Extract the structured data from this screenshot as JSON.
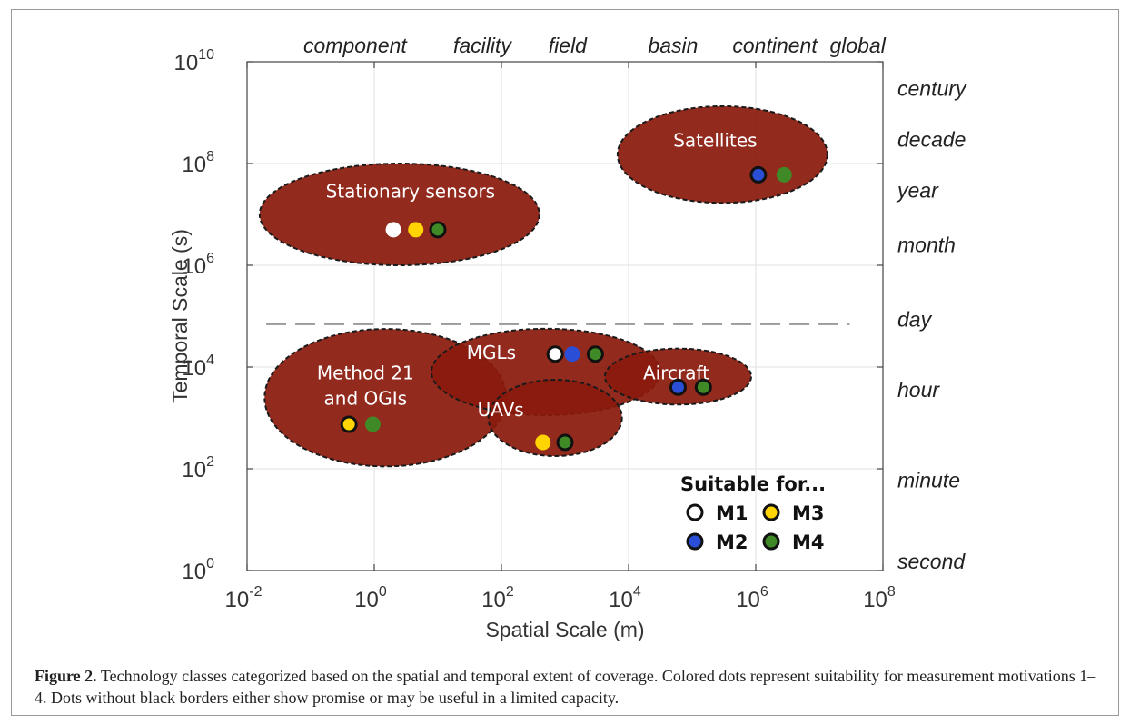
{
  "chart_data": {
    "type": "scatter",
    "xlabel": "Spatial Scale (m)",
    "ylabel": "Temporal Scale (s)",
    "x_scale": "log",
    "y_scale": "log",
    "xlim": [
      0.01,
      100000000
    ],
    "ylim": [
      1,
      10000000000
    ],
    "grid": true,
    "x_ticks": [
      {
        "base": "10",
        "exp": "-2",
        "value": 0.01
      },
      {
        "base": "10",
        "exp": "0",
        "value": 1
      },
      {
        "base": "10",
        "exp": "2",
        "value": 100
      },
      {
        "base": "10",
        "exp": "4",
        "value": 10000
      },
      {
        "base": "10",
        "exp": "6",
        "value": 1000000
      },
      {
        "base": "10",
        "exp": "8",
        "value": 100000000
      }
    ],
    "y_ticks": [
      {
        "base": "10",
        "exp": "0",
        "value": 1
      },
      {
        "base": "10",
        "exp": "2",
        "value": 100
      },
      {
        "base": "10",
        "exp": "4",
        "value": 10000
      },
      {
        "base": "10",
        "exp": "6",
        "value": 1000000
      },
      {
        "base": "10",
        "exp": "8",
        "value": 100000000
      },
      {
        "base": "10",
        "exp": "10",
        "value": 10000000000
      }
    ],
    "top_labels": [
      {
        "text": "component",
        "x": 0.5
      },
      {
        "text": "facility",
        "x": 50
      },
      {
        "text": "field",
        "x": 1100
      },
      {
        "text": "basin",
        "x": 50000
      },
      {
        "text": "continent",
        "x": 2000000
      },
      {
        "text": "global",
        "x": 40000000
      }
    ],
    "right_labels": [
      {
        "text": "century",
        "y": 3000000000
      },
      {
        "text": "decade",
        "y": 300000000
      },
      {
        "text": "year",
        "y": 30000000
      },
      {
        "text": "month",
        "y": 2500000
      },
      {
        "text": "day",
        "y": 86400
      },
      {
        "text": "hour",
        "y": 3600
      },
      {
        "text": "minute",
        "y": 60
      },
      {
        "text": "second",
        "y": 1.5
      }
    ],
    "reference_line": {
      "y": 70000,
      "x_start": 0.02,
      "x_end": 30000000,
      "style": "dashed",
      "color": "#999999"
    },
    "regions": [
      {
        "name": "Stationary sensors",
        "cx": 2.5,
        "cy": 10000000,
        "rx_decades": 2.2,
        "ry_decades": 1.0,
        "label_y": 30000000
      },
      {
        "name": "Satellites",
        "cx": 300000,
        "cy": 150000000,
        "rx_decades": 1.65,
        "ry_decades": 0.95,
        "label_y": 300000000
      },
      {
        "name": "Method 21 and OGIs",
        "cx": 1.5,
        "cy": 2500,
        "rx_decades": 1.9,
        "ry_decades": 1.35,
        "label_lines": [
          "Method 21",
          "and OGIs"
        ],
        "label_y": 8000
      },
      {
        "name": "MGLs",
        "cx": 500,
        "cy": 8000,
        "rx_decades": 1.8,
        "ry_decades": 0.85,
        "label_y": 20000
      },
      {
        "name": "Aircraft",
        "cx": 60000,
        "cy": 6500,
        "rx_decades": 1.15,
        "ry_decades": 0.55,
        "label_y": 8000
      },
      {
        "name": "UAVs",
        "cx": 700,
        "cy": 1000,
        "rx_decades": 1.05,
        "ry_decades": 0.75,
        "label_y": 1500
      }
    ],
    "series": [
      {
        "name": "M1",
        "color": "#ffffff",
        "points": [
          {
            "x": 2,
            "y": 5000000,
            "bordered": false
          },
          {
            "x": 700,
            "y": 18000,
            "bordered": true
          }
        ]
      },
      {
        "name": "M2",
        "color": "#2a4fd6",
        "points": [
          {
            "x": 1300,
            "y": 18000,
            "bordered": false
          },
          {
            "x": 60000,
            "y": 4000,
            "bordered": true
          },
          {
            "x": 1100000,
            "y": 60000000,
            "bordered": true
          }
        ]
      },
      {
        "name": "M3",
        "color": "#ffd400",
        "points": [
          {
            "x": 4.5,
            "y": 5000000,
            "bordered": false
          },
          {
            "x": 0.4,
            "y": 750,
            "bordered": true
          },
          {
            "x": 450,
            "y": 330,
            "bordered": false
          }
        ]
      },
      {
        "name": "M4",
        "color": "#3f8a26",
        "points": [
          {
            "x": 10,
            "y": 5000000,
            "bordered": true
          },
          {
            "x": 3000,
            "y": 18000,
            "bordered": true
          },
          {
            "x": 0.95,
            "y": 750,
            "bordered": false
          },
          {
            "x": 1000,
            "y": 330,
            "bordered": true
          },
          {
            "x": 150000,
            "y": 4000,
            "bordered": true
          },
          {
            "x": 2800000,
            "y": 60000000,
            "bordered": false
          }
        ]
      }
    ],
    "legend": {
      "title": "Suitable for...",
      "position": "bottom-right",
      "items": [
        {
          "label": "M1",
          "color": "#ffffff"
        },
        {
          "label": "M3",
          "color": "#ffd400"
        },
        {
          "label": "M2",
          "color": "#2a4fd6"
        },
        {
          "label": "M4",
          "color": "#3f8a26"
        }
      ]
    },
    "colors": {
      "region_fill": "#8a1a0d",
      "region_stroke": "#1a1a1a",
      "grid": "#e2e2e2",
      "axis": "#444444"
    }
  },
  "caption": {
    "label": "Figure 2.",
    "text": " Technology classes categorized based on the spatial and temporal extent of coverage. Colored dots represent suitability for measurement motivations 1–4. Dots without black borders either show promise or may be useful in a limited capacity."
  }
}
